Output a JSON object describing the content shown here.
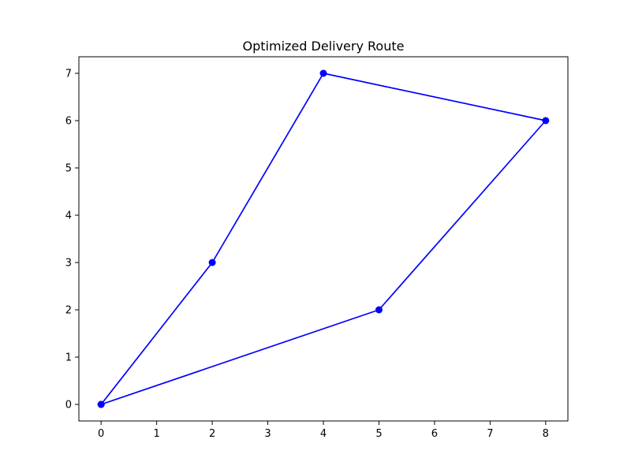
{
  "chart_data": {
    "type": "line",
    "title": "Optimized Delivery Route",
    "xlabel": "",
    "ylabel": "",
    "xlim": [
      -0.4,
      8.4
    ],
    "ylim": [
      -0.35,
      7.35
    ],
    "xticks": [
      0,
      1,
      2,
      3,
      4,
      5,
      6,
      7,
      8
    ],
    "yticks": [
      0,
      1,
      2,
      3,
      4,
      5,
      6,
      7
    ],
    "grid": false,
    "legend": "none",
    "series": [
      {
        "color": "#0000ff",
        "marker": "circle",
        "x": [
          0,
          2,
          4,
          8,
          5,
          0
        ],
        "y": [
          0,
          3,
          7,
          6,
          2,
          0
        ]
      }
    ]
  }
}
